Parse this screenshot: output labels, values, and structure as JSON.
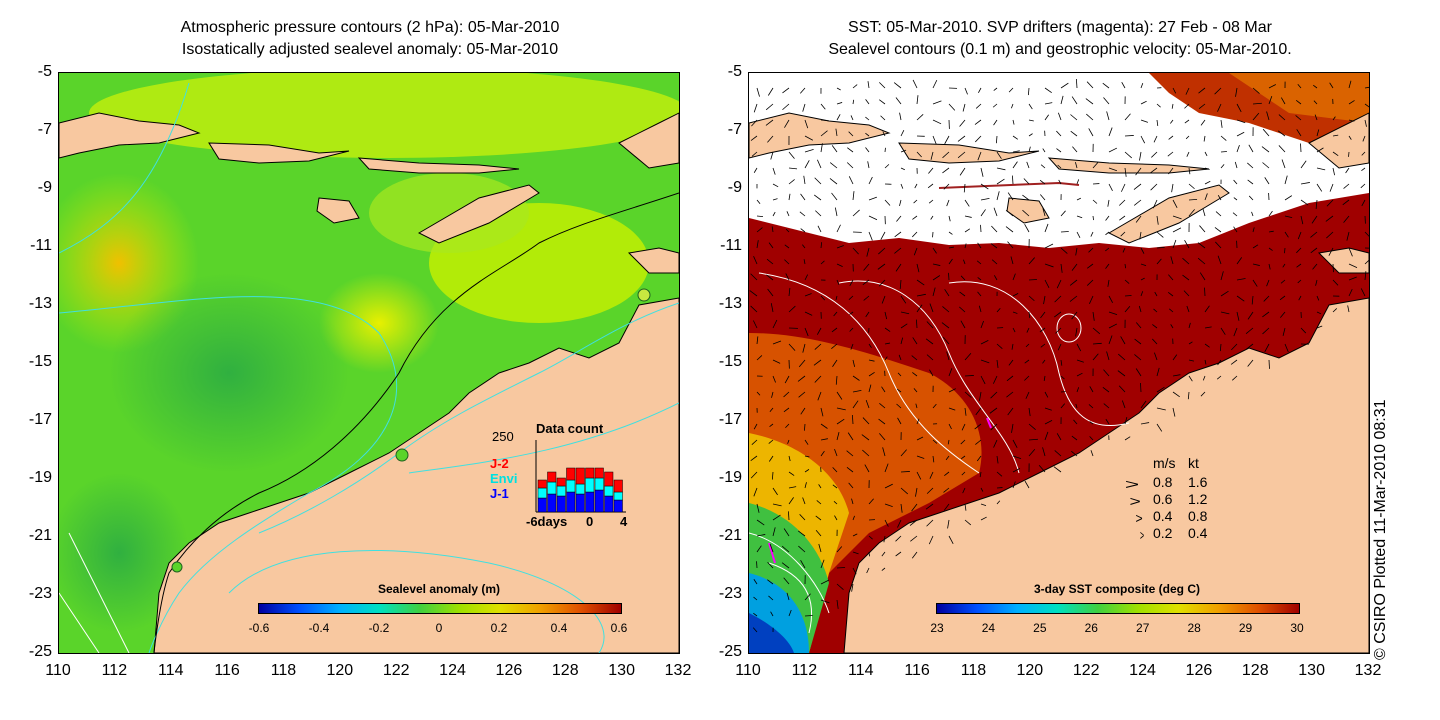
{
  "left_panel": {
    "title_line1": "Atmospheric pressure contours (2 hPa): 05-Mar-2010",
    "title_line2": "Isostatically adjusted sealevel anomaly: 05-Mar-2010",
    "colorbar": {
      "title": "Sealevel anomaly (m)",
      "ticks": [
        "-0.6",
        "-0.4",
        "-0.2",
        "0",
        "0.2",
        "0.4",
        "0.6"
      ]
    },
    "inset": {
      "title": "Data count",
      "ymax_label": "250",
      "legend": [
        {
          "label": "J-2",
          "color": "#ff0000"
        },
        {
          "label": "Envi",
          "color": "#00ffff"
        },
        {
          "label": "J-1",
          "color": "#0000ff"
        }
      ],
      "x_left_label": "-6days",
      "x_mid_label": "0",
      "x_right_label": "4"
    }
  },
  "right_panel": {
    "title_line1": "SST: 05-Mar-2010. SVP drifters (magenta): 27 Feb - 08 Mar",
    "title_line2": "Sealevel contours (0.1 m) and geostrophic velocity: 05-Mar-2010.",
    "colorbar": {
      "title": "3-day SST composite (deg C)",
      "ticks": [
        "23",
        "24",
        "25",
        "26",
        "27",
        "28",
        "29",
        "30"
      ]
    },
    "velocity_legend": {
      "header_ms": "m/s",
      "header_kt": "kt",
      "rows": [
        {
          "ms": "0.8",
          "kt": "1.6"
        },
        {
          "ms": "0.6",
          "kt": "1.2"
        },
        {
          "ms": "0.4",
          "kt": "0.8"
        },
        {
          "ms": "0.2",
          "kt": "0.4"
        }
      ]
    }
  },
  "axes": {
    "y_ticks": [
      "-5",
      "-7",
      "-9",
      "-11",
      "-13",
      "-15",
      "-17",
      "-19",
      "-21",
      "-23",
      "-25"
    ],
    "x_ticks": [
      "110",
      "112",
      "114",
      "116",
      "118",
      "120",
      "122",
      "124",
      "126",
      "128",
      "130",
      "132"
    ]
  },
  "copyright": "© CSIRO Plotted 11-Mar-2010 08:31",
  "colors": {
    "land": "#f8c8a0",
    "ocean_green": "#5ad42a",
    "ocean_yellowgreen": "#c8f000",
    "sst_hot": "#a00000",
    "cloud": "#ffffff",
    "contour_cyan": "#40e0e0"
  }
}
